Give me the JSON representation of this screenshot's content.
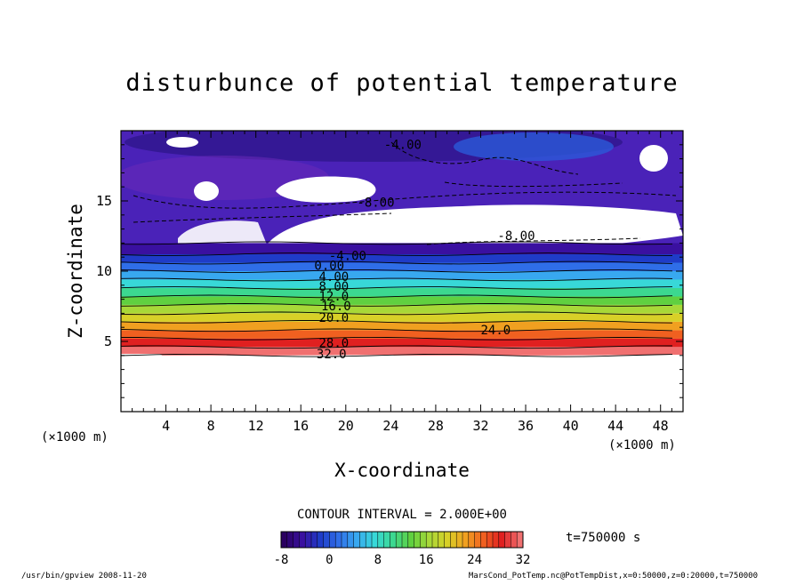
{
  "chart_data": {
    "type": "heatmap",
    "title": "disturbunce of potential temperature",
    "xlabel": "X-coordinate",
    "ylabel": "Z-coordinate",
    "x_unit_left": "(×1000 m)",
    "x_unit_right": "(×1000 m)",
    "xlim": [
      0,
      50
    ],
    "ylim": [
      0,
      20
    ],
    "x_ticks": [
      "4",
      "8",
      "12",
      "16",
      "20",
      "24",
      "28",
      "32",
      "36",
      "40",
      "44",
      "48"
    ],
    "y_ticks": [
      "5",
      "10",
      "15"
    ],
    "contour_interval_text": "CONTOUR INTERVAL = 2.000E+00",
    "time_text": "t=750000 s",
    "colorbar": {
      "min": -8,
      "max": 32,
      "tick_labels": [
        "-8",
        "0",
        "8",
        "16",
        "24",
        "32"
      ],
      "colors": [
        "#2a0060",
        "#3a10a0",
        "#1f3cc8",
        "#2f6ee8",
        "#38a8f0",
        "#38d8d8",
        "#3cd890",
        "#60d040",
        "#a8d838",
        "#d8d028",
        "#f0a020",
        "#f06020",
        "#e02020",
        "#f07070"
      ]
    },
    "level_z_km": [
      4.0,
      4.6,
      5.2,
      5.8,
      6.4,
      7.0,
      7.6,
      8.2,
      8.8,
      9.4,
      10.0,
      10.6,
      11.2,
      12.0
    ],
    "contour_labels": [
      {
        "text": "-4.00",
        "x": 23.4,
        "z": 18.7
      },
      {
        "text": "-8.00",
        "x": 21.0,
        "z": 14.6
      },
      {
        "text": "-8.00",
        "x": 33.5,
        "z": 12.2
      },
      {
        "text": "-4.00",
        "x": 18.5,
        "z": 10.8
      },
      {
        "text": "0.00",
        "x": 17.2,
        "z": 10.1
      },
      {
        "text": "4.00",
        "x": 17.6,
        "z": 9.3
      },
      {
        "text": "8.00",
        "x": 17.6,
        "z": 8.6
      },
      {
        "text": "12.0",
        "x": 17.6,
        "z": 7.9
      },
      {
        "text": "16.0",
        "x": 17.8,
        "z": 7.2
      },
      {
        "text": "20.0",
        "x": 17.6,
        "z": 6.4
      },
      {
        "text": "24.0",
        "x": 32.0,
        "z": 5.5
      },
      {
        "text": "28.0",
        "x": 17.6,
        "z": 4.6
      },
      {
        "text": "32.0",
        "x": 17.4,
        "z": 3.8
      }
    ],
    "grid": false,
    "legend": "bottom"
  },
  "footer": {
    "left": "/usr/bin/gpview 2008-11-20",
    "right": "MarsCond_PotTemp.nc@PotTempDist,x=0:50000,z=0:20000,t=750000"
  }
}
